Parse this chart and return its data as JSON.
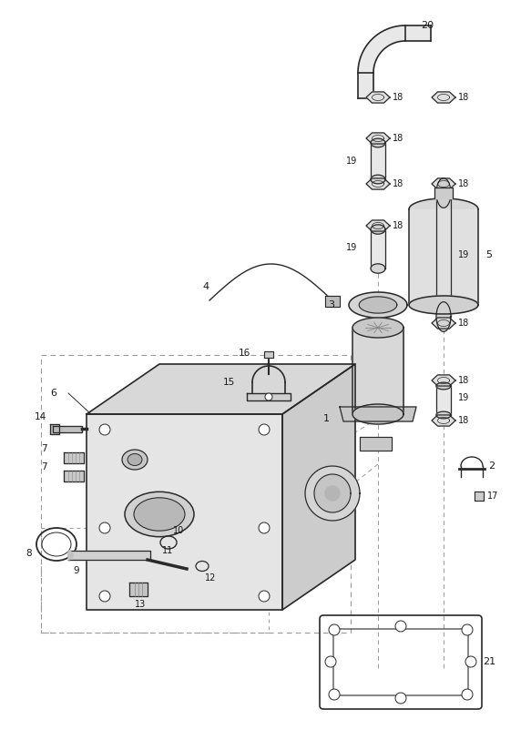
{
  "background_color": "#ffffff",
  "line_color": "#2a2a2a",
  "label_color": "#1a1a1a",
  "fig_width": 5.83,
  "fig_height": 8.24,
  "dpi": 100
}
